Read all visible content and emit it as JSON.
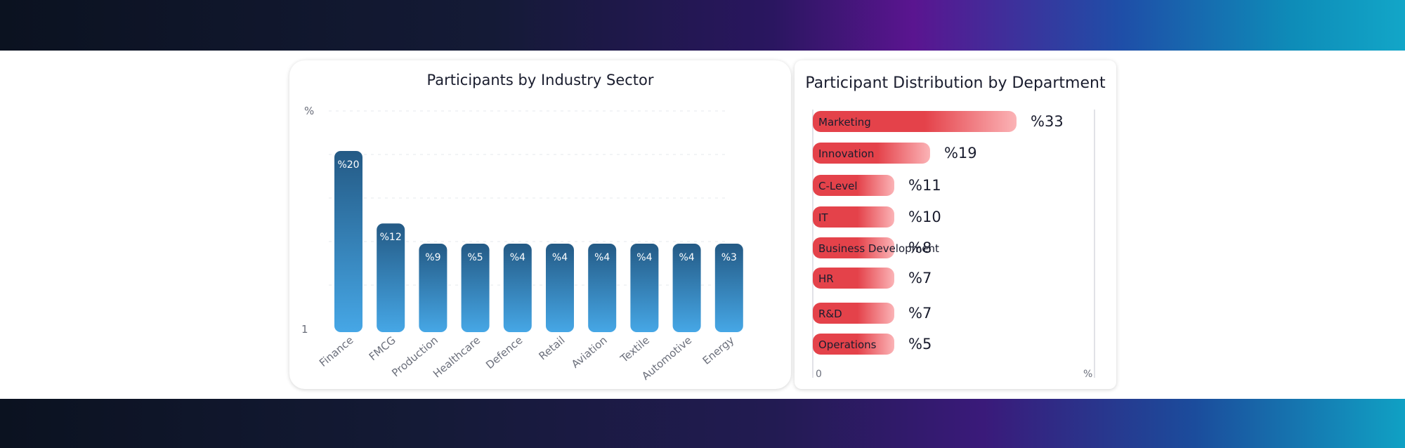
{
  "colors": {
    "bar_top": "#245a85",
    "bar_bottom": "#46a7e6",
    "hbar_left": "#e4424a",
    "hbar_right": "#fbb3b6"
  },
  "chart_data": [
    {
      "type": "bar",
      "title": "Participants by Industry Sector",
      "y_axis_top_label": "%",
      "y_axis_bottom_label": "1",
      "grid": true,
      "categories": [
        "Finance",
        "FMCG",
        "Production",
        "Healthcare",
        "Defence",
        "Retail",
        "Aviation",
        "Textile",
        "Automotive",
        "Energy"
      ],
      "values": [
        20,
        12,
        9,
        5,
        4,
        4,
        4,
        4,
        4,
        3
      ],
      "data_labels": [
        "%20",
        "%12",
        "%9",
        "%5",
        "%4",
        "%4",
        "%4",
        "%4",
        "%4",
        "%3"
      ]
    },
    {
      "type": "bar",
      "orientation": "horizontal",
      "title": "Participant Distribution by Department",
      "x_axis_start_label": "0",
      "x_axis_end_label": "%",
      "categories": [
        "Marketing",
        "Innovation",
        "C-Level",
        "IT",
        "Business Development",
        "HR",
        "R&D",
        "Operations"
      ],
      "values": [
        33,
        19,
        11,
        10,
        8,
        7,
        7,
        5
      ],
      "data_labels": [
        "%33",
        "%19",
        "%11",
        "%10",
        "%8",
        "%7",
        "%7",
        "%5"
      ]
    }
  ]
}
